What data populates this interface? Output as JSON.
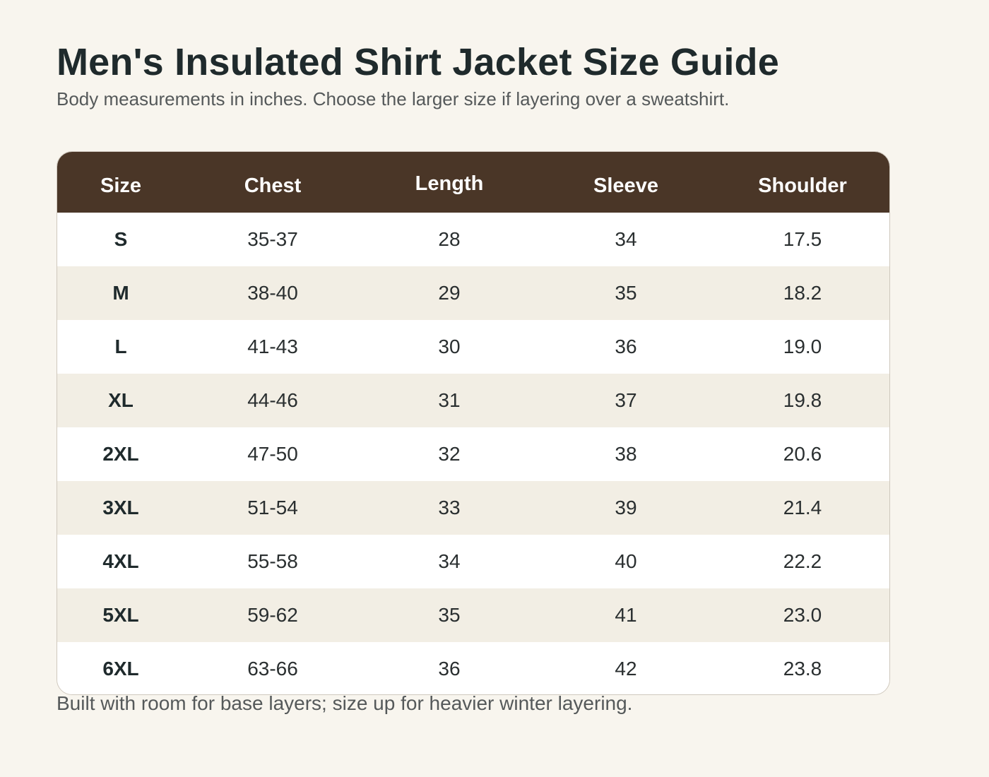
{
  "title": "Men's Insulated Shirt Jacket Size Guide",
  "subtitle": "Body measurements in inches. Choose the larger size if layering over a sweatshirt.",
  "colors": {
    "background": "#f8f5ee",
    "header": "#4a3627",
    "row_alt": "#f2eee4",
    "title_text": "#1f2a2c"
  },
  "table": {
    "headers": [
      "Size",
      "Chest",
      "Length",
      "Sleeve",
      "Shoulder"
    ],
    "rows": [
      [
        "S",
        "35-37",
        "28",
        "34",
        "17.5"
      ],
      [
        "M",
        "38-40",
        "29",
        "35",
        "18.2"
      ],
      [
        "L",
        "41-43",
        "30",
        "36",
        "19.0"
      ],
      [
        "XL",
        "44-46",
        "31",
        "37",
        "19.8"
      ],
      [
        "2XL",
        "47-50",
        "32",
        "38",
        "20.6"
      ],
      [
        "3XL",
        "51-54",
        "33",
        "39",
        "21.4"
      ],
      [
        "4XL",
        "55-58",
        "34",
        "40",
        "22.2"
      ],
      [
        "5XL",
        "59-62",
        "35",
        "41",
        "23.0"
      ],
      [
        "6XL",
        "63-66",
        "36",
        "42",
        "23.8"
      ]
    ]
  },
  "note": "Built with room for base layers; size up for heavier winter layering."
}
